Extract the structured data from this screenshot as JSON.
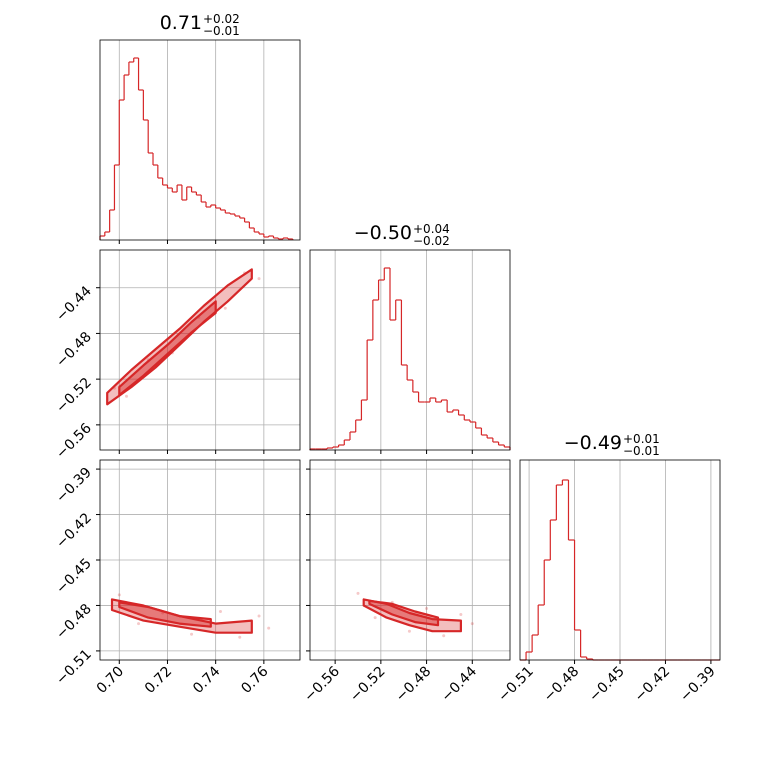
{
  "chart_data": {
    "type": "corner",
    "color": "#d62728",
    "grid": true,
    "params": [
      {
        "title": "0.71",
        "title_plus": "+0.02",
        "title_minus": "−0.01",
        "lim": [
          0.692,
          0.775
        ],
        "ticks": [
          {
            "value": 0.7,
            "label": "0.70"
          },
          {
            "value": 0.72,
            "label": "0.72"
          },
          {
            "value": 0.74,
            "label": "0.74"
          },
          {
            "value": 0.76,
            "label": "0.76"
          }
        ],
        "hist": {
          "ylim": [
            0,
            200
          ],
          "bins": [
            0.692,
            0.694,
            0.696,
            0.698,
            0.7,
            0.702,
            0.704,
            0.706,
            0.708,
            0.71,
            0.712,
            0.714,
            0.716,
            0.718,
            0.72,
            0.722,
            0.724,
            0.726,
            0.728,
            0.73,
            0.732,
            0.734,
            0.736,
            0.738,
            0.74,
            0.742,
            0.744,
            0.746,
            0.748,
            0.75,
            0.752,
            0.754,
            0.756,
            0.758,
            0.76,
            0.762,
            0.764,
            0.766,
            0.768,
            0.77,
            0.772
          ],
          "counts": [
            4,
            8,
            30,
            75,
            140,
            165,
            178,
            182,
            150,
            120,
            87,
            75,
            62,
            55,
            52,
            48,
            55,
            40,
            53,
            48,
            45,
            38,
            33,
            35,
            32,
            30,
            27,
            26,
            24,
            22,
            18,
            12,
            8,
            6,
            3,
            4,
            2,
            1,
            2,
            1
          ]
        }
      },
      {
        "title": "−0.50",
        "title_plus": "+0.04",
        "title_minus": "−0.02",
        "lim": [
          -0.582,
          -0.407
        ],
        "ticks": [
          {
            "value": -0.56,
            "label": "−0.56"
          },
          {
            "value": -0.52,
            "label": "−0.52"
          },
          {
            "value": -0.48,
            "label": "−0.48"
          },
          {
            "value": -0.44,
            "label": "−0.44"
          }
        ],
        "hist": {
          "ylim": [
            0,
            200
          ],
          "bins": [
            -0.582,
            -0.577,
            -0.572,
            -0.567,
            -0.562,
            -0.557,
            -0.552,
            -0.547,
            -0.542,
            -0.537,
            -0.532,
            -0.527,
            -0.522,
            -0.517,
            -0.512,
            -0.507,
            -0.502,
            -0.497,
            -0.492,
            -0.487,
            -0.482,
            -0.477,
            -0.472,
            -0.467,
            -0.462,
            -0.457,
            -0.452,
            -0.447,
            -0.442,
            -0.437,
            -0.432,
            -0.427,
            -0.422,
            -0.417,
            -0.412,
            -0.407
          ],
          "counts": [
            1,
            1,
            1,
            2,
            3,
            5,
            10,
            18,
            30,
            50,
            110,
            150,
            170,
            182,
            130,
            150,
            85,
            70,
            58,
            48,
            48,
            52,
            48,
            50,
            38,
            40,
            35,
            30,
            28,
            22,
            15,
            12,
            8,
            5,
            3
          ]
        }
      },
      {
        "title": "−0.49",
        "title_plus": "+0.01",
        "title_minus": "−0.01",
        "lim": [
          -0.516,
          -0.384
        ],
        "ticks": [
          {
            "value": -0.51,
            "label": "−0.51"
          },
          {
            "value": -0.48,
            "label": "−0.48"
          },
          {
            "value": -0.45,
            "label": "−0.45"
          },
          {
            "value": -0.42,
            "label": "−0.42"
          },
          {
            "value": -0.39,
            "label": "−0.39"
          }
        ],
        "hist": {
          "ylim": [
            0,
            200
          ],
          "bins": [
            -0.516,
            -0.512,
            -0.508,
            -0.504,
            -0.5,
            -0.496,
            -0.492,
            -0.488,
            -0.484,
            -0.48,
            -0.476,
            -0.472,
            -0.468,
            -0.464,
            -0.46,
            -0.456,
            -0.452,
            -0.448,
            -0.444,
            -0.44,
            -0.436,
            -0.432,
            -0.428,
            -0.424,
            -0.42,
            -0.416,
            -0.412,
            -0.408,
            -0.404,
            -0.4,
            -0.396,
            -0.392,
            -0.388,
            -0.384
          ],
          "counts": [
            0,
            8,
            25,
            55,
            100,
            140,
            175,
            180,
            120,
            30,
            3,
            1,
            0,
            0,
            0,
            0,
            0,
            0,
            0,
            0,
            0,
            0,
            0,
            0,
            0,
            0,
            0,
            0,
            0,
            0,
            0,
            0,
            0
          ]
        }
      }
    ],
    "pairs": [
      {
        "contours": [
          {
            "x": [
              0.695,
              0.705,
              0.715,
              0.725,
              0.735,
              0.745,
              0.755,
              0.755,
              0.745,
              0.735,
              0.725,
              0.715,
              0.705,
              0.695
            ],
            "y": [
              -0.542,
              -0.527,
              -0.51,
              -0.49,
              -0.47,
              -0.452,
              -0.432,
              -0.424,
              -0.438,
              -0.456,
              -0.476,
              -0.494,
              -0.512,
              -0.532
            ]
          },
          {
            "x": [
              0.7,
              0.71,
              0.72,
              0.73,
              0.74,
              0.74,
              0.73,
              0.72,
              0.71,
              0.7
            ],
            "y": [
              -0.534,
              -0.517,
              -0.498,
              -0.479,
              -0.462,
              -0.452,
              -0.47,
              -0.49,
              -0.508,
              -0.527
            ]
          }
        ],
        "points": {
          "x": [
            0.698,
            0.703,
            0.712,
            0.722,
            0.733,
            0.744,
            0.752,
            0.758
          ],
          "y": [
            -0.528,
            -0.535,
            -0.503,
            -0.497,
            -0.466,
            -0.458,
            -0.427,
            -0.432
          ]
        }
      },
      {
        "contours": [
          {
            "x": [
              0.697,
              0.71,
              0.725,
              0.74,
              0.755,
              0.755,
              0.74,
              0.725,
              0.71,
              0.697
            ],
            "y": [
              -0.483,
              -0.49,
              -0.494,
              -0.498,
              -0.498,
              -0.49,
              -0.492,
              -0.487,
              -0.48,
              -0.476
            ]
          },
          {
            "x": [
              0.7,
              0.712,
              0.725,
              0.738,
              0.738,
              0.725,
              0.712,
              0.7
            ],
            "y": [
              -0.481,
              -0.488,
              -0.492,
              -0.494,
              -0.489,
              -0.487,
              -0.481,
              -0.478
            ]
          }
        ],
        "points": {
          "x": [
            0.7,
            0.708,
            0.718,
            0.73,
            0.742,
            0.75,
            0.758,
            0.762
          ],
          "y": [
            -0.473,
            -0.492,
            -0.485,
            -0.499,
            -0.484,
            -0.501,
            -0.487,
            -0.495
          ]
        }
      },
      {
        "contours": [
          {
            "x": [
              -0.535,
              -0.515,
              -0.495,
              -0.475,
              -0.45,
              -0.45,
              -0.475,
              -0.495,
              -0.515,
              -0.535
            ],
            "y": [
              -0.48,
              -0.488,
              -0.493,
              -0.497,
              -0.497,
              -0.49,
              -0.489,
              -0.485,
              -0.479,
              -0.476
            ]
          },
          {
            "x": [
              -0.53,
              -0.51,
              -0.49,
              -0.47,
              -0.47,
              -0.49,
              -0.51,
              -0.53
            ],
            "y": [
              -0.479,
              -0.486,
              -0.491,
              -0.493,
              -0.488,
              -0.484,
              -0.479,
              -0.477
            ]
          }
        ],
        "points": {
          "x": [
            -0.54,
            -0.525,
            -0.51,
            -0.495,
            -0.48,
            -0.465,
            -0.45,
            -0.44
          ],
          "y": [
            -0.472,
            -0.488,
            -0.478,
            -0.497,
            -0.482,
            -0.5,
            -0.486,
            -0.492
          ]
        }
      }
    ]
  }
}
